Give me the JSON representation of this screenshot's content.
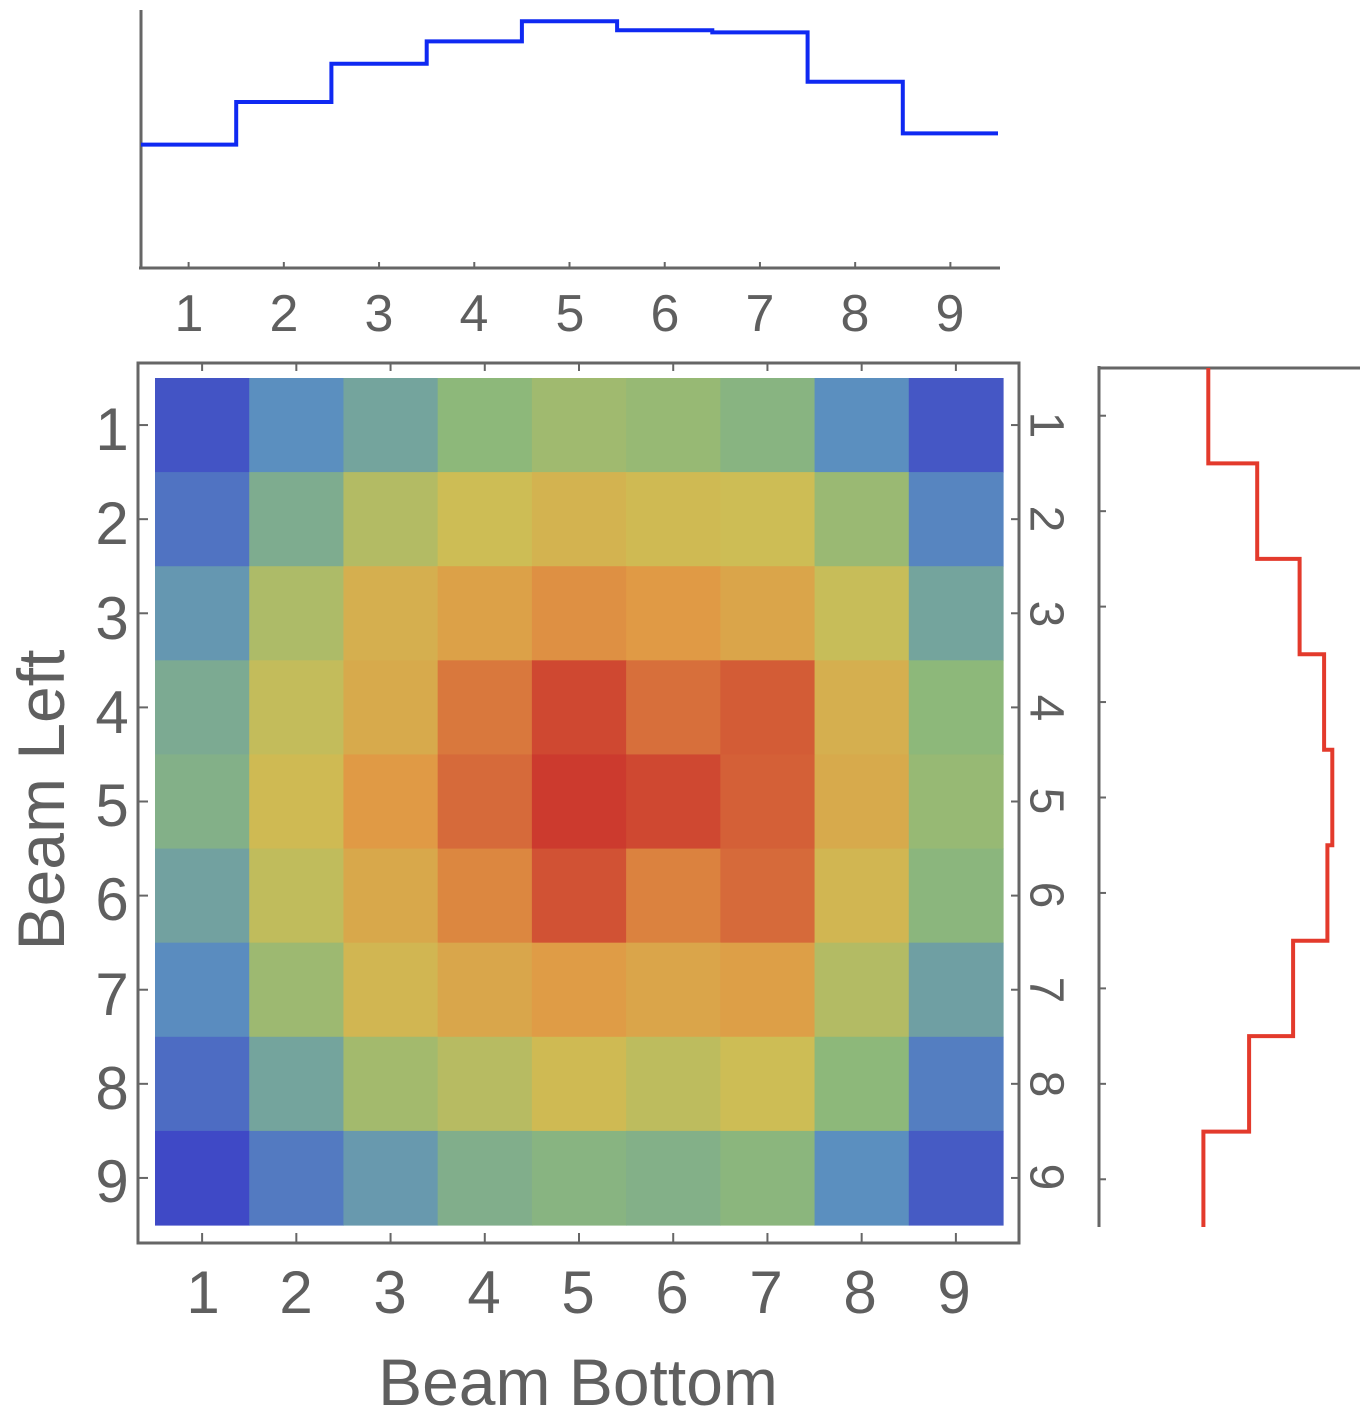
{
  "chart_data": [
    {
      "type": "heatmap",
      "xlabel": "Beam Bottom",
      "ylabel": "Beam Left",
      "x_categories": [
        "1",
        "2",
        "3",
        "4",
        "5",
        "6",
        "7",
        "8",
        "9"
      ],
      "y_categories": [
        "1",
        "2",
        "3",
        "4",
        "5",
        "6",
        "7",
        "8",
        "9"
      ],
      "right_tick_labels": [
        "1",
        "2",
        "3",
        "4",
        "5",
        "6",
        "7",
        "8",
        "9"
      ],
      "colormap": [
        "#3f49c6",
        "#5b8fbf",
        "#8db87a",
        "#cdbd55",
        "#e09a45",
        "#cc3a2e"
      ],
      "values": [
        [
          0.03,
          0.2,
          0.3,
          0.4,
          0.46,
          0.43,
          0.38,
          0.2,
          0.04
        ],
        [
          0.12,
          0.34,
          0.52,
          0.6,
          0.66,
          0.62,
          0.6,
          0.44,
          0.17
        ],
        [
          0.24,
          0.5,
          0.68,
          0.76,
          0.82,
          0.8,
          0.74,
          0.58,
          0.3
        ],
        [
          0.33,
          0.57,
          0.71,
          0.87,
          0.97,
          0.89,
          0.93,
          0.68,
          0.4
        ],
        [
          0.36,
          0.62,
          0.8,
          0.9,
          1.0,
          0.97,
          0.92,
          0.71,
          0.43
        ],
        [
          0.29,
          0.56,
          0.72,
          0.84,
          0.95,
          0.85,
          0.9,
          0.64,
          0.39
        ],
        [
          0.19,
          0.45,
          0.64,
          0.73,
          0.79,
          0.74,
          0.77,
          0.52,
          0.28
        ],
        [
          0.1,
          0.3,
          0.47,
          0.53,
          0.62,
          0.55,
          0.6,
          0.4,
          0.15
        ],
        [
          0.0,
          0.14,
          0.25,
          0.35,
          0.38,
          0.36,
          0.39,
          0.2,
          0.05
        ]
      ]
    },
    {
      "type": "line",
      "step": true,
      "orientation": "horizontal",
      "x_categories": [
        "1",
        "2",
        "3",
        "4",
        "5",
        "6",
        "7",
        "8",
        "9"
      ],
      "values": [
        0.45,
        0.64,
        0.81,
        0.91,
        1.0,
        0.96,
        0.95,
        0.73,
        0.5
      ],
      "ylim": [
        -0.1,
        1.05
      ],
      "color": "#0f29f2"
    },
    {
      "type": "line",
      "step": true,
      "orientation": "vertical",
      "y_categories": [
        "1",
        "2",
        "3",
        "4",
        "5",
        "6",
        "7",
        "8",
        "9"
      ],
      "values": [
        0.07,
        0.37,
        0.63,
        0.78,
        0.83,
        0.8,
        0.59,
        0.32,
        0.04
      ],
      "xlim": [
        -0.6,
        1.0
      ],
      "color": "#e33a2c"
    }
  ]
}
